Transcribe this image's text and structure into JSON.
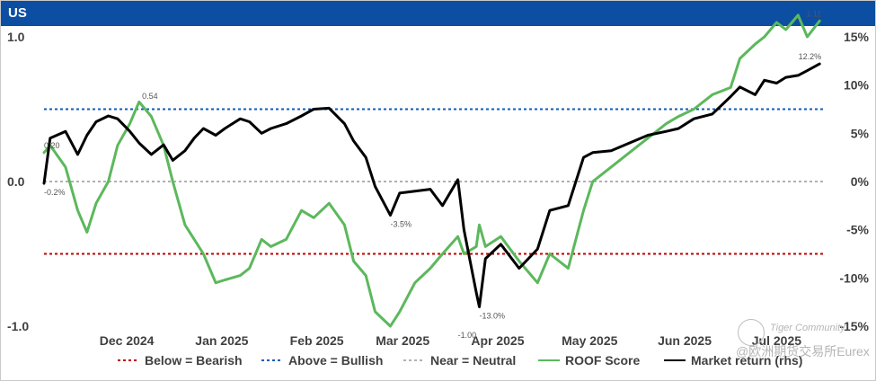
{
  "page": {
    "title": "US"
  },
  "watermark": {
    "line1": "Tiger Community",
    "line2": "@欧洲期货交易所Eurex"
  },
  "chart_data": {
    "type": "line",
    "title": "US",
    "x_range": [
      "2024-11-18",
      "2025-07-31"
    ],
    "x_tick_labels": [
      {
        "label": "Dec 2024",
        "date": "2024-12-15"
      },
      {
        "label": "Jan 2025",
        "date": "2025-01-15"
      },
      {
        "label": "Feb 2025",
        "date": "2025-02-15"
      },
      {
        "label": "Mar 2025",
        "date": "2025-03-15"
      },
      {
        "label": "Apr 2025",
        "date": "2025-04-15"
      },
      {
        "label": "May 2025",
        "date": "2025-05-15"
      },
      {
        "label": "Jun 2025",
        "date": "2025-06-15"
      },
      {
        "label": "Jul 2025",
        "date": "2025-07-15"
      }
    ],
    "y_left": {
      "range": [
        -1.0,
        1.0
      ],
      "ticks": [
        "1.0",
        "0.0",
        "-1.0"
      ],
      "tick_values": [
        1.0,
        0.0,
        -1.0
      ]
    },
    "y_right": {
      "range": [
        -15,
        15
      ],
      "unit": "%",
      "ticks": [
        "15%",
        "10%",
        "5%",
        "0%",
        "-5%",
        "-10%",
        "-15%"
      ],
      "tick_values": [
        15,
        10,
        5,
        0,
        -5,
        -10,
        -15
      ]
    },
    "grid": false,
    "legend_position": "bottom",
    "reference_lines": [
      {
        "name": "Below = Bearish",
        "value": -0.5,
        "axis": "left",
        "color": "#c00000",
        "style": "dotted"
      },
      {
        "name": "Above = Bullish",
        "value": 0.5,
        "axis": "left",
        "color": "#0b5db8",
        "style": "dotted"
      },
      {
        "name": "Near = Neutral",
        "value": 0.0,
        "axis": "left",
        "color": "#b0b0b0",
        "style": "dotted"
      }
    ],
    "series": [
      {
        "name": "ROOF Score",
        "axis": "left",
        "color": "#5cb85c",
        "x": [
          "2024-11-18",
          "2024-11-20",
          "2024-11-25",
          "2024-11-29",
          "2024-12-02",
          "2024-12-05",
          "2024-12-09",
          "2024-12-12",
          "2024-12-16",
          "2024-12-19",
          "2024-12-23",
          "2024-12-27",
          "2024-12-30",
          "2025-01-03",
          "2025-01-06",
          "2025-01-09",
          "2025-01-13",
          "2025-01-16",
          "2025-01-21",
          "2025-01-24",
          "2025-01-28",
          "2025-01-31",
          "2025-02-05",
          "2025-02-10",
          "2025-02-14",
          "2025-02-19",
          "2025-02-24",
          "2025-02-27",
          "2025-03-03",
          "2025-03-06",
          "2025-03-11",
          "2025-03-14",
          "2025-03-19",
          "2025-03-24",
          "2025-03-28",
          "2025-04-02",
          "2025-04-04",
          "2025-04-08",
          "2025-04-09",
          "2025-04-11",
          "2025-04-16",
          "2025-04-22",
          "2025-04-28",
          "2025-05-02",
          "2025-05-08",
          "2025-05-13",
          "2025-05-16",
          "2025-05-22",
          "2025-05-28",
          "2025-06-03",
          "2025-06-09",
          "2025-06-13",
          "2025-06-18",
          "2025-06-24",
          "2025-06-30",
          "2025-07-03",
          "2025-07-08",
          "2025-07-11",
          "2025-07-15",
          "2025-07-18",
          "2025-07-22",
          "2025-07-25",
          "2025-07-29"
        ],
        "values": [
          0.2,
          0.25,
          0.1,
          -0.2,
          -0.35,
          -0.15,
          0.0,
          0.25,
          0.4,
          0.55,
          0.45,
          0.25,
          0.0,
          -0.3,
          -0.4,
          -0.5,
          -0.7,
          -0.68,
          -0.65,
          -0.6,
          -0.4,
          -0.45,
          -0.4,
          -0.2,
          -0.25,
          -0.15,
          -0.3,
          -0.55,
          -0.65,
          -0.9,
          -1.0,
          -0.9,
          -0.7,
          -0.6,
          -0.5,
          -0.38,
          -0.5,
          -0.45,
          -0.3,
          -0.45,
          -0.38,
          -0.55,
          -0.7,
          -0.5,
          -0.6,
          -0.2,
          0.0,
          0.1,
          0.2,
          0.3,
          0.4,
          0.45,
          0.5,
          0.6,
          0.65,
          0.85,
          0.95,
          1.0,
          1.1,
          1.05,
          1.15,
          1.0,
          1.11
        ]
      },
      {
        "name": "Market return (rhs)",
        "axis": "right",
        "color": "#000000",
        "x": [
          "2024-11-18",
          "2024-11-20",
          "2024-11-25",
          "2024-11-29",
          "2024-12-02",
          "2024-12-05",
          "2024-12-09",
          "2024-12-12",
          "2024-12-16",
          "2024-12-19",
          "2024-12-23",
          "2024-12-27",
          "2024-12-30",
          "2025-01-03",
          "2025-01-06",
          "2025-01-09",
          "2025-01-13",
          "2025-01-16",
          "2025-01-21",
          "2025-01-24",
          "2025-01-28",
          "2025-01-31",
          "2025-02-05",
          "2025-02-10",
          "2025-02-14",
          "2025-02-19",
          "2025-02-24",
          "2025-02-27",
          "2025-03-03",
          "2025-03-06",
          "2025-03-11",
          "2025-03-14",
          "2025-03-19",
          "2025-03-24",
          "2025-03-28",
          "2025-04-02",
          "2025-04-04",
          "2025-04-08",
          "2025-04-09",
          "2025-04-11",
          "2025-04-16",
          "2025-04-22",
          "2025-04-28",
          "2025-05-02",
          "2025-05-08",
          "2025-05-13",
          "2025-05-16",
          "2025-05-22",
          "2025-05-28",
          "2025-06-03",
          "2025-06-09",
          "2025-06-13",
          "2025-06-18",
          "2025-06-24",
          "2025-06-30",
          "2025-07-03",
          "2025-07-08",
          "2025-07-11",
          "2025-07-15",
          "2025-07-18",
          "2025-07-22",
          "2025-07-25",
          "2025-07-29"
        ],
        "values": [
          -0.2,
          4.5,
          5.2,
          2.8,
          4.8,
          6.2,
          6.8,
          6.5,
          5.2,
          4.0,
          2.8,
          3.8,
          2.2,
          3.2,
          4.5,
          5.5,
          4.8,
          5.5,
          6.5,
          6.2,
          5.0,
          5.5,
          6.0,
          6.8,
          7.5,
          7.6,
          6.0,
          4.2,
          2.5,
          -0.5,
          -3.5,
          -1.2,
          -1.0,
          -0.8,
          -2.5,
          0.2,
          -5.0,
          -11.5,
          -13.0,
          -8.0,
          -6.5,
          -9.0,
          -7.0,
          -3.0,
          -2.5,
          2.5,
          3.0,
          3.2,
          4.0,
          4.8,
          5.2,
          5.5,
          6.5,
          7.0,
          8.8,
          9.8,
          9.0,
          10.5,
          10.2,
          10.8,
          11.0,
          11.5,
          12.2
        ]
      }
    ],
    "data_labels": [
      {
        "text": "0.20",
        "series": "ROOF Score",
        "x": "2024-11-18",
        "y": 0.2
      },
      {
        "text": "-0.2%",
        "series": "Market return (rhs)",
        "x": "2024-11-18",
        "y": -0.2
      },
      {
        "text": "0.54",
        "series": "ROOF Score",
        "x": "2024-12-20",
        "y": 0.54
      },
      {
        "text": "-3.5%",
        "series": "Market return (rhs)",
        "x": "2025-03-11",
        "y": -3.5
      },
      {
        "text": "-1.00",
        "series": "ROOF Score",
        "x": "2025-04-02",
        "y": -1.0
      },
      {
        "text": "-13.0%",
        "series": "Market return (rhs)",
        "x": "2025-04-09",
        "y": -13.0
      },
      {
        "text": "1.11",
        "series": "ROOF Score",
        "x": "2025-07-29",
        "y": 1.11
      },
      {
        "text": "12.2%",
        "series": "Market return (rhs)",
        "x": "2025-07-29",
        "y": 12.2
      }
    ],
    "legend": [
      {
        "label": "Below = Bearish",
        "color": "#c00000",
        "style": "dotted"
      },
      {
        "label": "Above = Bullish",
        "color": "#0b5db8",
        "style": "dotted"
      },
      {
        "label": "Near = Neutral",
        "color": "#b0b0b0",
        "style": "dotted"
      },
      {
        "label": "ROOF Score",
        "color": "#5cb85c",
        "style": "solid"
      },
      {
        "label": "Market return (rhs)",
        "color": "#000000",
        "style": "solid"
      }
    ]
  }
}
